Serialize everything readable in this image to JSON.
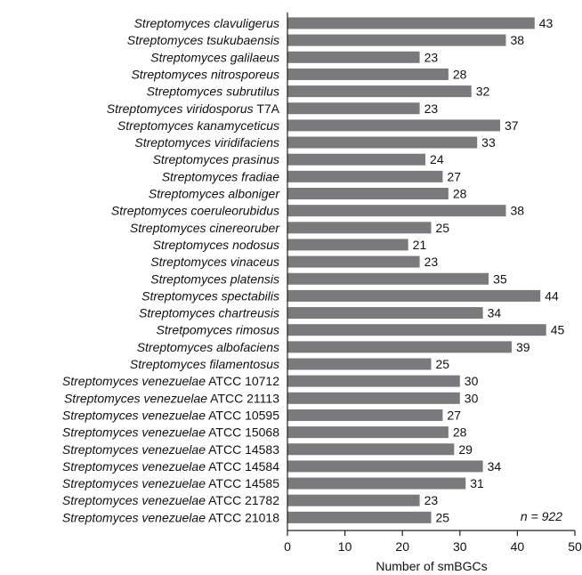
{
  "chart_data": {
    "type": "bar",
    "orientation": "horizontal",
    "categories": [
      {
        "species": "Streptomyces clavuligerus",
        "strain": ""
      },
      {
        "species": "Streptomyces tsukubaensis",
        "strain": ""
      },
      {
        "species": "Streptomyces galilaeus",
        "strain": ""
      },
      {
        "species": "Streptomyces nitrosporeus",
        "strain": ""
      },
      {
        "species": "Streptomyces subrutilus",
        "strain": ""
      },
      {
        "species": "Streptomyces viridosporus",
        "strain": "T7A"
      },
      {
        "species": "Streptomyces kanamyceticus",
        "strain": ""
      },
      {
        "species": "Streptomyces viridifaciens",
        "strain": ""
      },
      {
        "species": "Streptomyces prasinus",
        "strain": ""
      },
      {
        "species": "Streptomyces fradiae",
        "strain": ""
      },
      {
        "species": "Streptomyces alboniger",
        "strain": ""
      },
      {
        "species": "Streptomyces coeruleorubidus",
        "strain": ""
      },
      {
        "species": "Streptomyces cinereoruber",
        "strain": ""
      },
      {
        "species": "Streptomyces nodosus",
        "strain": ""
      },
      {
        "species": "Streptomyces vinaceus",
        "strain": ""
      },
      {
        "species": "Streptomyces platensis",
        "strain": ""
      },
      {
        "species": "Streptomyces spectabilis",
        "strain": ""
      },
      {
        "species": "Streptomyces chartreusis",
        "strain": ""
      },
      {
        "species": "Stretpomyces rimosus",
        "strain": ""
      },
      {
        "species": "Streptomyces albofaciens",
        "strain": ""
      },
      {
        "species": "Streptomyces filamentosus",
        "strain": ""
      },
      {
        "species": "Streptomyces venezuelae",
        "strain": "ATCC 10712"
      },
      {
        "species": "Streptomyces venezuelae",
        "strain": "ATCC 21113"
      },
      {
        "species": "Streptomyces venezuelae",
        "strain": "ATCC 10595"
      },
      {
        "species": "Streptomyces venezuelae",
        "strain": "ATCC 15068"
      },
      {
        "species": "Streptomyces venezuelae",
        "strain": "ATCC 14583"
      },
      {
        "species": "Streptomyces venezuelae",
        "strain": "ATCC 14584"
      },
      {
        "species": "Streptomyces venezuelae",
        "strain": "ATCC 14585"
      },
      {
        "species": "Streptomyces venezuelae",
        "strain": "ATCC 21782"
      },
      {
        "species": "Streptomyces venezuelae",
        "strain": "ATCC 21018"
      }
    ],
    "values": [
      43,
      38,
      23,
      28,
      32,
      23,
      37,
      33,
      24,
      27,
      28,
      38,
      25,
      21,
      23,
      35,
      44,
      34,
      45,
      39,
      25,
      30,
      30,
      27,
      28,
      29,
      34,
      31,
      23,
      25
    ],
    "xlabel": "Number of smBGCs",
    "xlim": [
      0,
      50
    ],
    "xticks": [
      0,
      10,
      20,
      30,
      40,
      50
    ],
    "annotation": "n = 922",
    "bar_color": "#7a7a7c",
    "grid": false,
    "legend": "none"
  }
}
